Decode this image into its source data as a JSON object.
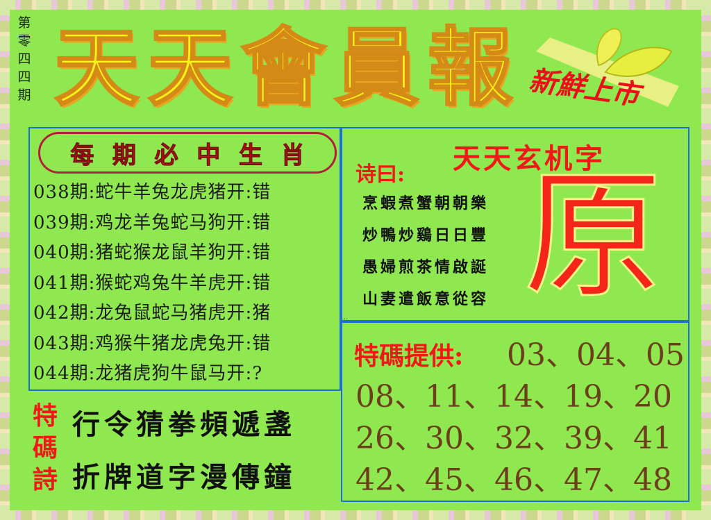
{
  "issue": [
    "第",
    "零",
    "四",
    "四",
    "期"
  ],
  "masthead": [
    "天",
    "天",
    "會",
    "員",
    "報"
  ],
  "badge": "新鮮上市",
  "left_box": {
    "header": [
      "每",
      "期",
      "必",
      "中",
      "生",
      "肖"
    ],
    "records": [
      {
        "period": "038期",
        "zodiacs": "蛇牛羊兔龙虎猪",
        "open_label": "开",
        "result": "错"
      },
      {
        "period": "039期",
        "zodiacs": "鸡龙羊兔蛇马狗",
        "open_label": "开",
        "result": "错"
      },
      {
        "period": "040期",
        "zodiacs": "猪蛇猴龙鼠羊狗",
        "open_label": "开",
        "result": "错"
      },
      {
        "period": "041期",
        "zodiacs": "猴蛇鸡兔牛羊虎",
        "open_label": "开",
        "result": "错"
      },
      {
        "period": "042期",
        "zodiacs": "龙兔鼠蛇马猪虎",
        "open_label": "开",
        "result": "猪"
      },
      {
        "period": "043期",
        "zodiacs": "鸡猴牛猪龙虎兔",
        "open_label": "开",
        "result": "错"
      },
      {
        "period": "044期",
        "zodiacs": "龙猪虎狗牛鼠马",
        "open_label": "开",
        "result": "?"
      }
    ]
  },
  "poem_box": {
    "head": "诗曰:",
    "title": "天天玄机字",
    "lines": [
      "烹蝦煮蟹朝朝樂",
      "炒鴨炒鷄日日豐",
      "愚婦煎茶情啟誕",
      "山妻遣飯意從容"
    ],
    "big_char": "原",
    "dots": ".."
  },
  "special_box": {
    "label": "特碼提供:",
    "rows": [
      "03、04、05",
      "08、11、14、19、20",
      "26、30、32、39、41",
      "42、45、46、47、48"
    ]
  },
  "special_poem": {
    "label": [
      "特",
      "碼",
      "詩"
    ],
    "lines": [
      "行令猜拳頻遞盞",
      "折牌道字漫傳鐘"
    ]
  },
  "colors": {
    "background": "#8fe84f",
    "accent_red": "#f01818",
    "title_yellow": "#fff41a",
    "box_border": "#1d6fd6",
    "number_brown": "#6b3f1a"
  }
}
